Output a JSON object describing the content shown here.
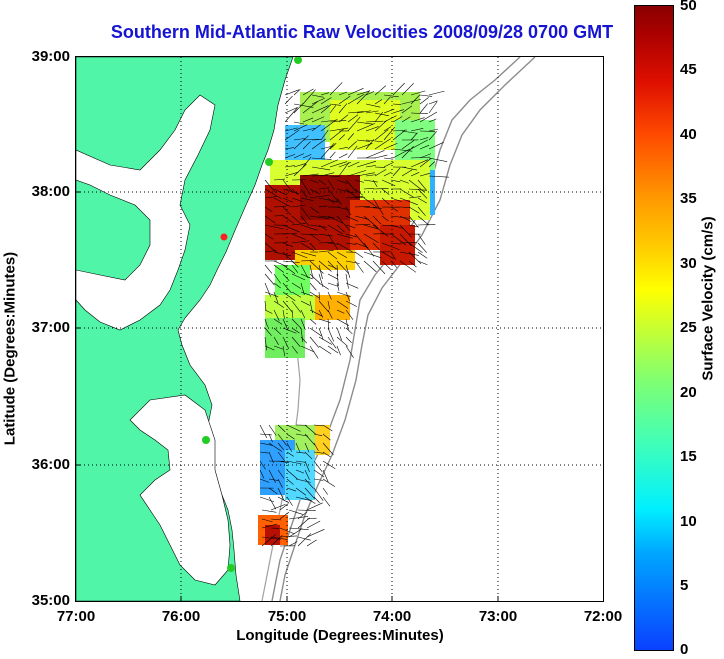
{
  "title": "Southern Mid-Atlantic Raw Velocities 2008/09/28 0700 GMT",
  "xaxis": {
    "label": "Longitude (Degrees:Minutes)",
    "ticks": [
      "77:00",
      "76:00",
      "75:00",
      "74:00",
      "73:00",
      "72:00"
    ]
  },
  "yaxis": {
    "label": "Latitude (Degrees:Minutes)",
    "ticks": [
      "39:00",
      "38:00",
      "37:00",
      "36:00",
      "35:00"
    ]
  },
  "colorbar": {
    "label": "Surface Velocity (cm/s)",
    "ticks": [
      "50",
      "45",
      "40",
      "35",
      "30",
      "25",
      "20",
      "15",
      "10",
      "5",
      "0"
    ],
    "range": [
      0,
      50
    ]
  },
  "colors": {
    "title": "#1414d2",
    "land": "#50f5a8",
    "station": "#22cc22",
    "station_alt": "#ff2020"
  },
  "map_extent": {
    "lon": [
      -77,
      -72
    ],
    "lat": [
      35,
      39
    ]
  }
}
